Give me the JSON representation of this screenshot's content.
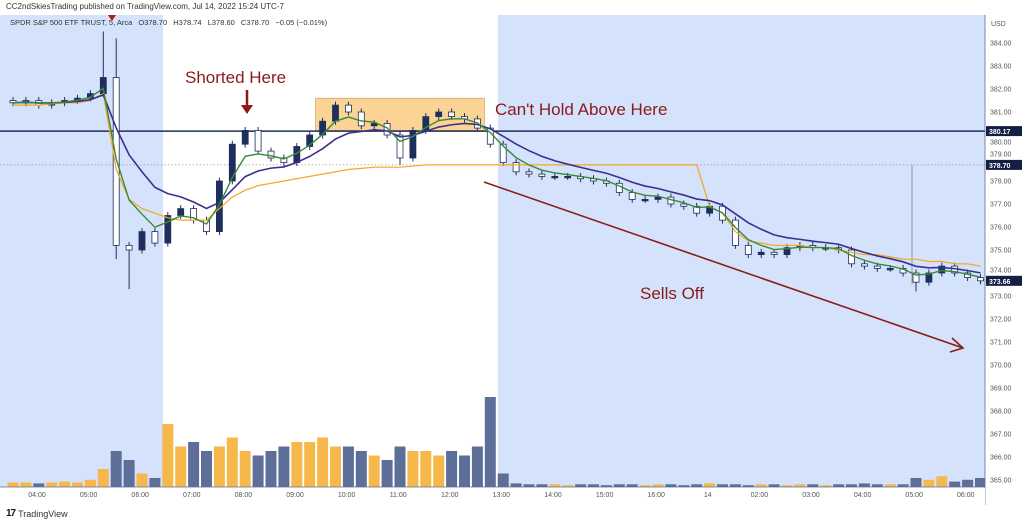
{
  "header": {
    "publisher_line": "CC2ndSkiesTrading published on TradingView.com, Jul 14, 2022 15:24 UTC-7",
    "symbol": "SPDR S&P 500 ETF TRUST, 5, Arca",
    "open": "O378.70",
    "high": "H378.74",
    "low": "L378.60",
    "close": "C378.70",
    "change": "−0.05 (−0.01%)"
  },
  "annotations": {
    "shorted": "Shorted Here",
    "cant_hold": "Can't Hold Above Here",
    "sells_off": "Sells Off"
  },
  "footer": {
    "logo": "TradingView",
    "brand": "TradingView"
  },
  "colors": {
    "session_bg": "#d4e3fb",
    "candle_up": "#1e2f5e",
    "candle_down": "#ffffff",
    "ema_fast": "#3a8a3a",
    "ema_slow": "#3b2f8f",
    "vwap": "#f5a623",
    "volume_up": "#f7b84b",
    "volume_down": "#5d6e99",
    "annotation": "#8b1a1a",
    "resistance_line": "#1e2f5e",
    "zone_fill": "#fbd08a"
  },
  "chart_data": {
    "type": "candlestick",
    "interval": "5",
    "currency": "USD",
    "ylim": [
      364.6,
      385.0
    ],
    "y_ticks": [
      "384.00",
      "383.00",
      "382.00",
      "381.00",
      "380.00",
      "379.00",
      "378.00",
      "377.00",
      "376.00",
      "375.00",
      "374.00",
      "373.00",
      "372.00",
      "371.00",
      "370.00",
      "369.00",
      "368.00",
      "367.00",
      "366.00",
      "365.00"
    ],
    "x_ticks": [
      "04:00",
      "05:00",
      "06:00",
      "07:00",
      "08:00",
      "09:00",
      "10:00",
      "11:00",
      "12:00",
      "13:00",
      "14:00",
      "15:00",
      "16:00",
      "14",
      "02:00",
      "03:00",
      "04:00",
      "05:00",
      "06:00"
    ],
    "close": [
      381.4,
      381.5,
      381.3,
      381.4,
      381.5,
      381.6,
      381.8,
      382.5,
      375.2,
      375.0,
      375.8,
      375.3,
      376.5,
      376.8,
      376.3,
      375.8,
      378.0,
      379.6,
      380.2,
      379.3,
      379.0,
      378.8,
      379.5,
      380.0,
      380.6,
      381.3,
      381.0,
      380.4,
      380.5,
      380.0,
      379.0,
      380.2,
      380.8,
      381.0,
      380.8,
      380.7,
      380.3,
      379.6,
      378.8,
      378.4,
      378.3,
      378.2,
      378.2,
      378.2,
      378.1,
      378.0,
      377.9,
      377.5,
      377.2,
      377.2,
      377.3,
      377.0,
      376.9,
      376.6,
      376.9,
      376.3,
      375.2,
      374.8,
      374.9,
      374.8,
      375.1,
      375.2,
      375.1,
      375.1,
      375.0,
      374.4,
      374.3,
      374.2,
      374.2,
      374.0,
      373.6,
      374.0,
      374.3,
      374.0,
      373.8,
      373.66
    ],
    "extremes": [
      {
        "i": 7,
        "h": 384.5
      },
      {
        "i": 8,
        "h": 384.2,
        "l": 374.6
      },
      {
        "i": 9,
        "l": 373.3
      },
      {
        "i": 30,
        "l": 378.7
      },
      {
        "i": 70,
        "l": 373.2
      }
    ],
    "vwap": [
      381.3,
      381.3,
      381.3,
      381.35,
      381.4,
      381.4,
      381.5,
      381.8,
      378.5,
      377.2,
      376.8,
      376.6,
      376.4,
      376.3,
      376.3,
      376.3,
      376.8,
      377.3,
      377.6,
      377.8,
      377.9,
      378.0,
      378.1,
      378.2,
      378.3,
      378.4,
      378.5,
      378.55,
      378.6,
      378.6,
      378.6,
      378.65,
      378.7,
      378.7,
      378.7,
      378.7,
      378.7,
      378.7,
      378.7,
      378.7,
      378.7,
      378.7,
      378.7,
      378.7,
      378.7,
      378.7,
      378.7,
      378.7,
      378.7,
      378.7,
      378.7,
      378.7,
      378.7,
      378.7,
      376.9,
      376.6,
      375.8,
      375.4,
      375.3,
      375.2,
      375.2,
      375.2,
      375.1,
      375.1,
      375.0,
      374.9,
      374.8,
      374.8,
      374.7,
      374.6,
      374.6,
      374.5,
      374.5,
      374.4,
      374.4,
      374.3
    ],
    "volume": [
      5,
      5,
      4,
      5,
      6,
      5,
      8,
      20,
      40,
      30,
      15,
      10,
      70,
      45,
      50,
      40,
      45,
      55,
      40,
      35,
      40,
      45,
      50,
      50,
      55,
      45,
      45,
      40,
      35,
      30,
      45,
      40,
      40,
      35,
      40,
      35,
      45,
      100,
      15,
      4,
      3,
      3,
      3,
      2,
      3,
      3,
      2,
      3,
      3,
      2,
      3,
      3,
      2,
      3,
      4,
      3,
      3,
      2,
      3,
      3,
      2,
      3,
      3,
      2,
      3,
      3,
      4,
      3,
      3,
      3,
      10,
      8,
      12,
      6,
      8,
      10
    ],
    "levels": {
      "resistance": "380.17",
      "last": "378.70",
      "close_tag": "373.66"
    },
    "zone": {
      "top": 381.6,
      "bottom": 380.2,
      "from_index": 24,
      "to_index": 36
    }
  }
}
